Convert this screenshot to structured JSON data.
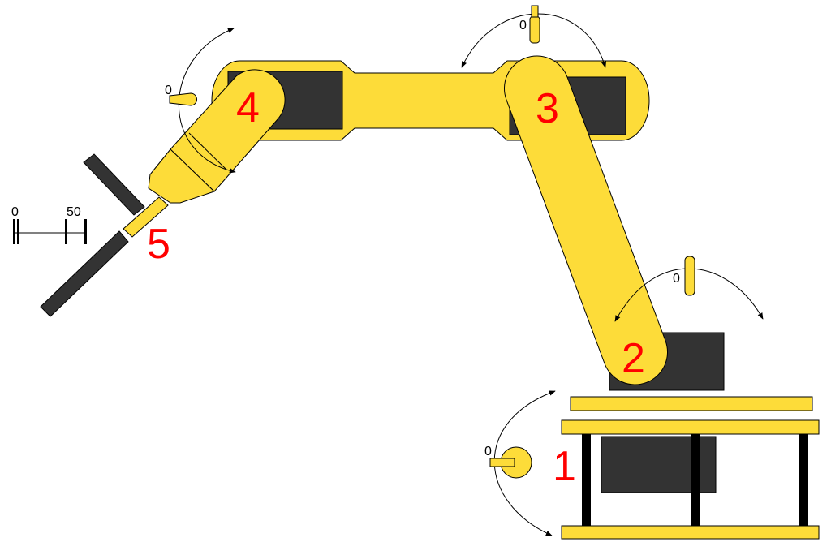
{
  "colors": {
    "yellow": "#fddc39",
    "dark": "#333333",
    "label_red": "#ff0000",
    "outline": "#000000",
    "white": "#ffffff"
  },
  "joints": [
    {
      "id": "joint-1",
      "label": "1"
    },
    {
      "id": "joint-2",
      "label": "2"
    },
    {
      "id": "joint-3",
      "label": "3"
    },
    {
      "id": "joint-4",
      "label": "4"
    },
    {
      "id": "joint-5",
      "label": "5"
    }
  ],
  "indicators": {
    "base_rotation": "0",
    "shoulder": "0",
    "elbow": "0",
    "wrist": "0"
  },
  "gripper_scale": {
    "min_label": "0",
    "max_label": "50"
  }
}
